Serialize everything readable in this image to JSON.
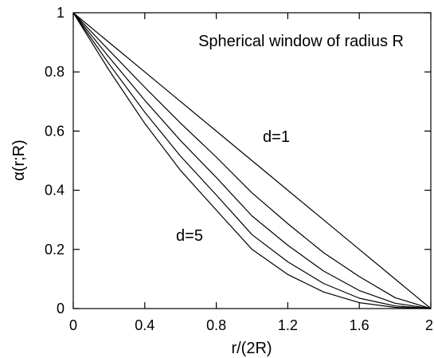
{
  "chart_data": {
    "type": "line",
    "title": "",
    "annotations": {
      "window_label": "Spherical window of radius R",
      "d_top_label": "d=1",
      "d_bottom_label": "d=5"
    },
    "xlabel": "r/(2R)",
    "ylabel": "α(r;R)",
    "xlim": [
      0,
      2
    ],
    "ylim": [
      0,
      1
    ],
    "xticks": [
      0,
      0.4,
      0.8,
      1.2,
      1.6,
      2
    ],
    "xtick_labels": [
      "0",
      "0.4",
      "0.8",
      "1.2",
      "1.6",
      "2"
    ],
    "yticks": [
      0,
      0.2,
      0.4,
      0.6,
      0.8,
      1
    ],
    "ytick_labels": [
      "0",
      "0.2",
      "0.4",
      "0.6",
      "0.8",
      "1"
    ],
    "grid": false,
    "line_color": "#000000",
    "x": [
      0,
      0.2,
      0.4,
      0.6,
      0.8,
      1.0,
      1.2,
      1.4,
      1.6,
      1.8,
      2.0
    ],
    "series": [
      {
        "values": [
          1,
          0.9,
          0.8,
          0.7,
          0.6,
          0.5,
          0.4,
          0.3,
          0.2,
          0.1,
          0
        ]
      },
      {
        "values": [
          1,
          0.873,
          0.748,
          0.627,
          0.512,
          0.391,
          0.287,
          0.189,
          0.108,
          0.037,
          0
        ]
      },
      {
        "values": [
          1,
          0.85,
          0.704,
          0.568,
          0.443,
          0.313,
          0.214,
          0.127,
          0.061,
          0.018,
          0
        ]
      },
      {
        "values": [
          1,
          0.827,
          0.664,
          0.515,
          0.384,
          0.25,
          0.158,
          0.085,
          0.035,
          0.009,
          0
        ]
      },
      {
        "values": [
          1,
          0.806,
          0.626,
          0.467,
          0.333,
          0.2,
          0.115,
          0.056,
          0.02,
          0.004,
          0
        ]
      }
    ]
  }
}
